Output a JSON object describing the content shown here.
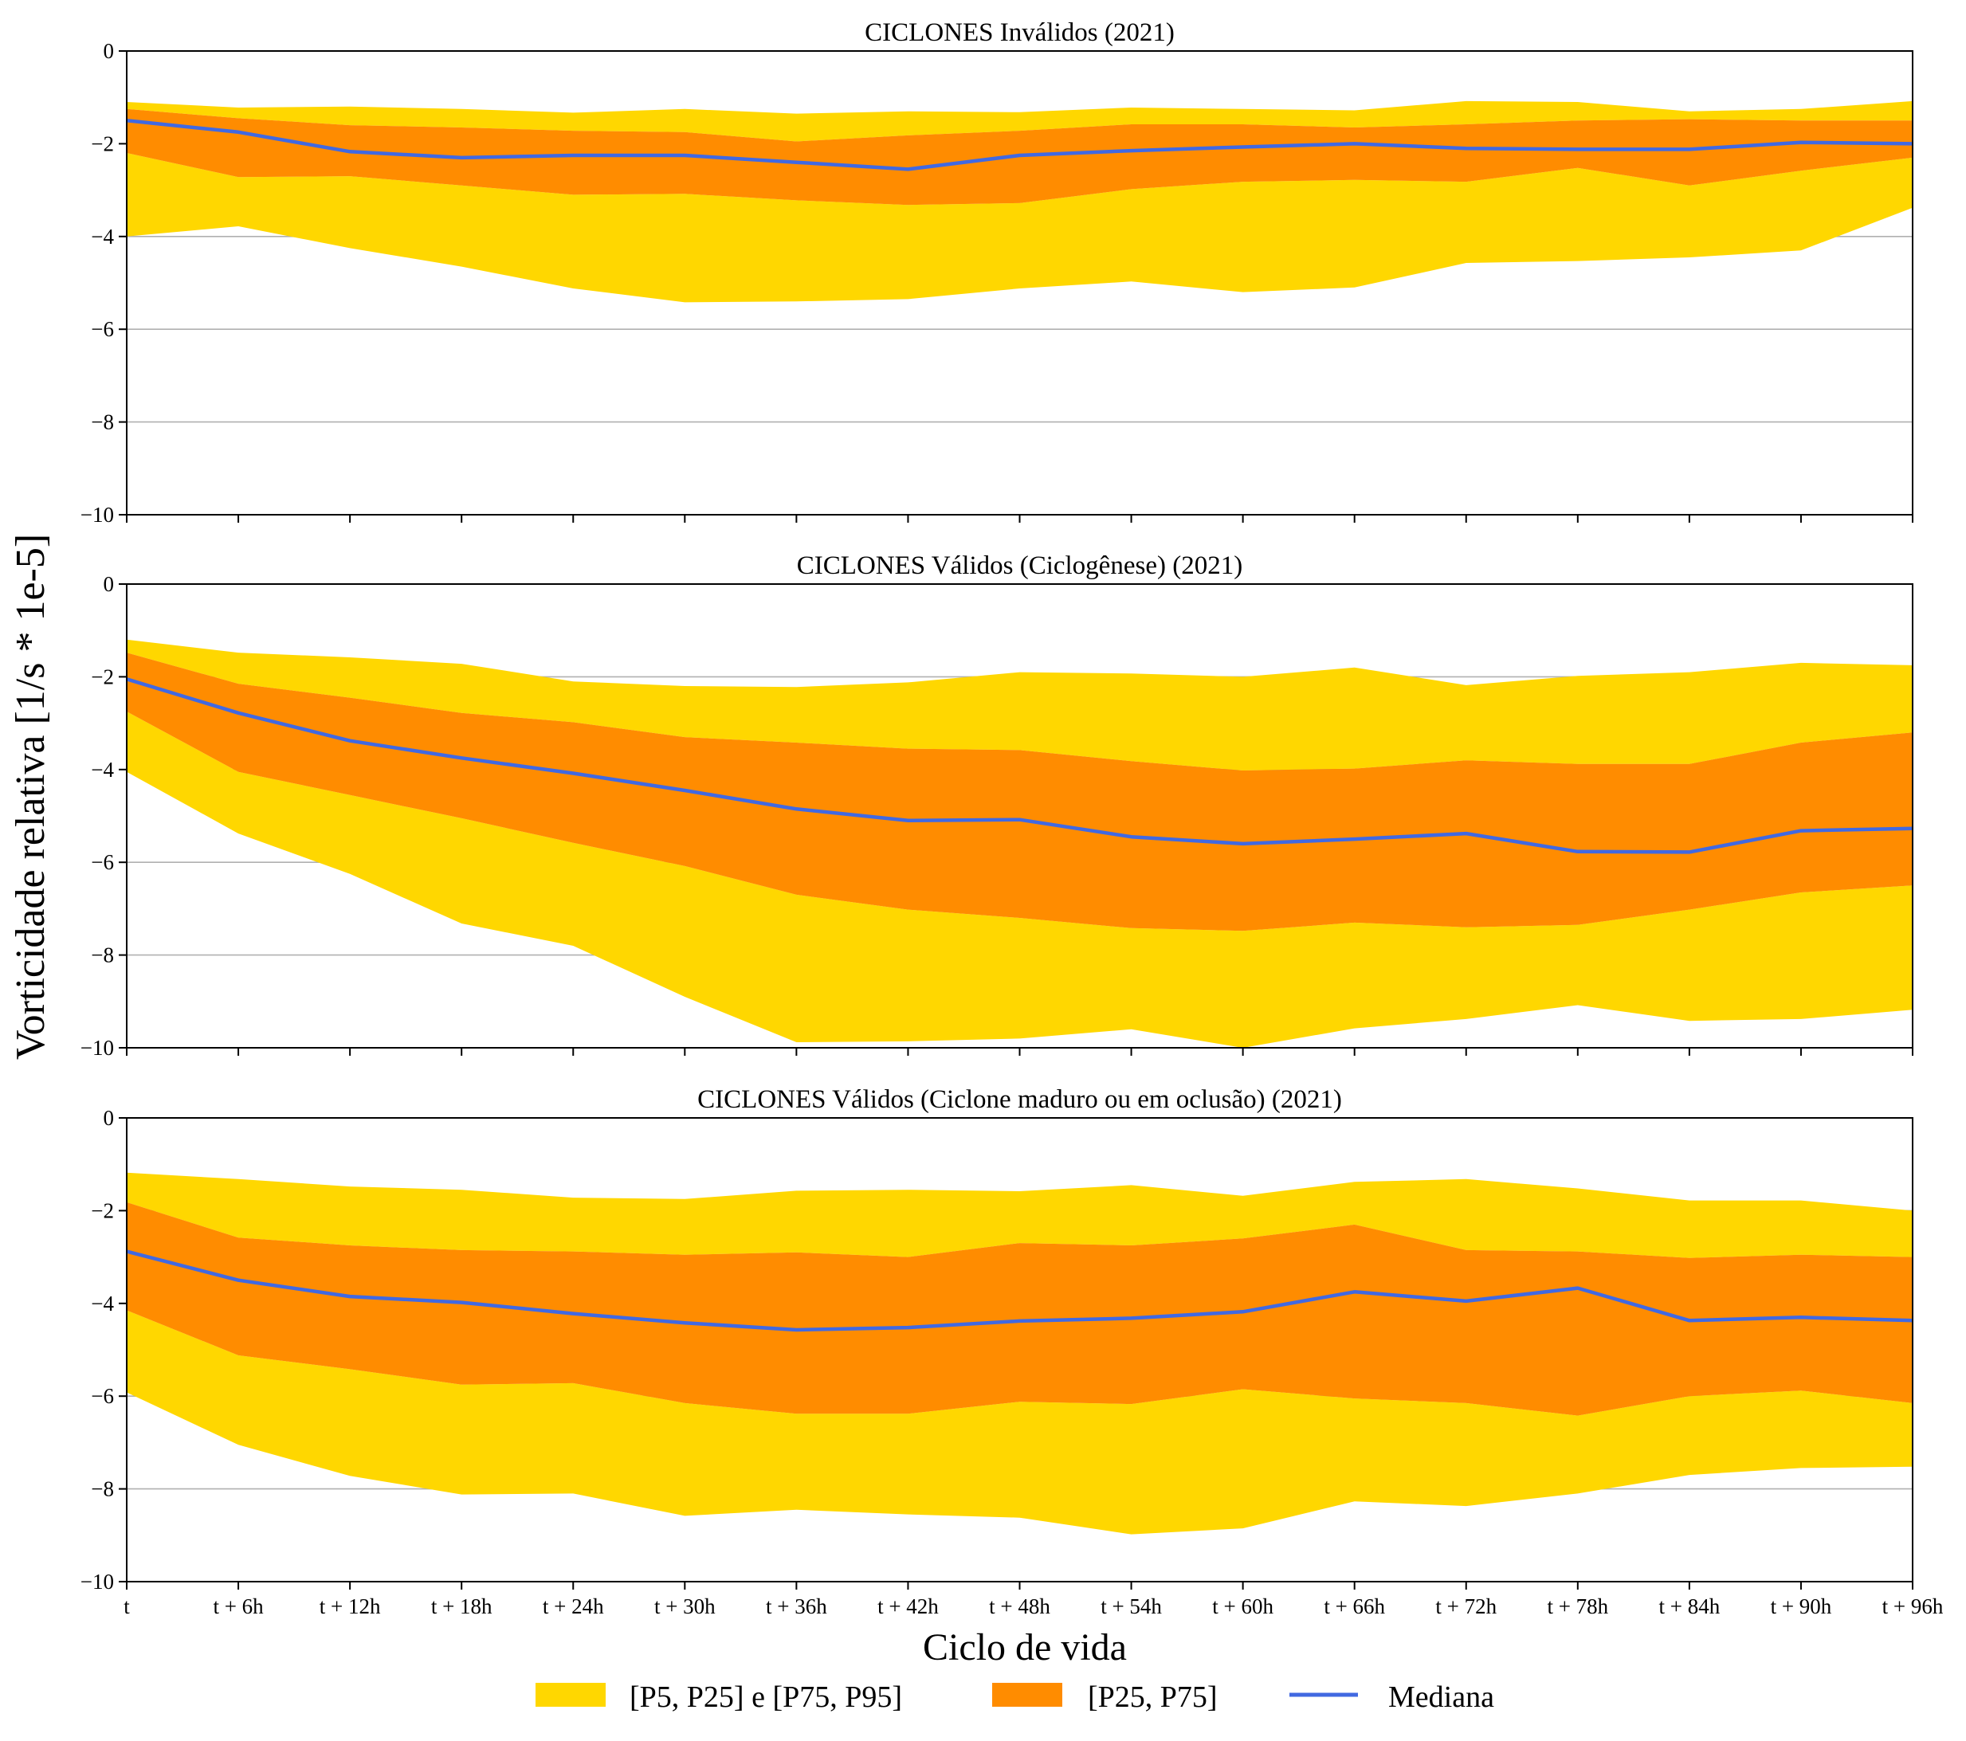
{
  "colors": {
    "outer_band": "#FFD700",
    "inner_band": "#FF8C00",
    "median": "#4169E1",
    "grid": "#b0b0b0"
  },
  "y_axis_label": "Vorticidade relativa [1/s * 1e-5]",
  "x_axis_label": "Ciclo de vida",
  "legend": {
    "outer": "[P5, P25] e [P75, P95]",
    "inner": "[P25, P75]",
    "median": "Mediana"
  },
  "chart_data": [
    {
      "type": "area",
      "title": "CICLONES Inválidos (2021)",
      "categories": [
        "t",
        "t + 6h",
        "t + 12h",
        "t + 18h",
        "t + 24h",
        "t + 30h",
        "t + 36h",
        "t + 42h",
        "t + 48h",
        "t + 54h",
        "t + 60h",
        "t + 66h",
        "t + 72h",
        "t + 78h",
        "t + 84h",
        "t + 90h",
        "t + 96h"
      ],
      "ylim": [
        -10,
        0
      ],
      "yticks": [
        0,
        -2,
        -4,
        -6,
        -8,
        -10
      ],
      "grid": "horizontal",
      "series": {
        "P95": [
          -1.1,
          -1.22,
          -1.2,
          -1.25,
          -1.33,
          -1.25,
          -1.35,
          -1.3,
          -1.32,
          -1.22,
          -1.25,
          -1.28,
          -1.08,
          -1.1,
          -1.3,
          -1.25,
          -1.08
        ],
        "P75": [
          -1.25,
          -1.45,
          -1.6,
          -1.65,
          -1.72,
          -1.75,
          -1.95,
          -1.82,
          -1.72,
          -1.58,
          -1.58,
          -1.65,
          -1.58,
          -1.5,
          -1.47,
          -1.5,
          -1.5
        ],
        "P50": [
          -1.5,
          -1.75,
          -2.17,
          -2.3,
          -2.25,
          -2.25,
          -2.4,
          -2.55,
          -2.25,
          -2.15,
          -2.07,
          -2.0,
          -2.1,
          -2.12,
          -2.12,
          -1.97,
          -2.0
        ],
        "P25": [
          -2.2,
          -2.72,
          -2.7,
          -2.9,
          -3.1,
          -3.08,
          -3.22,
          -3.32,
          -3.28,
          -2.98,
          -2.82,
          -2.78,
          -2.82,
          -2.52,
          -2.9,
          -2.58,
          -2.3
        ],
        "P5": [
          -4.0,
          -3.78,
          -4.25,
          -4.65,
          -5.12,
          -5.42,
          -5.4,
          -5.35,
          -5.12,
          -4.97,
          -5.2,
          -5.1,
          -4.57,
          -4.53,
          -4.45,
          -4.3,
          -3.38
        ]
      }
    },
    {
      "type": "area",
      "title": "CICLONES Válidos (Ciclogênese) (2021)",
      "categories": [
        "t",
        "t + 6h",
        "t + 12h",
        "t + 18h",
        "t + 24h",
        "t + 30h",
        "t + 36h",
        "t + 42h",
        "t + 48h",
        "t + 54h",
        "t + 60h",
        "t + 66h",
        "t + 72h",
        "t + 78h",
        "t + 84h",
        "t + 90h",
        "t + 96h"
      ],
      "ylim": [
        -10,
        0
      ],
      "yticks": [
        0,
        -2,
        -4,
        -6,
        -8,
        -10
      ],
      "grid": "horizontal",
      "series": {
        "P95": [
          -1.2,
          -1.48,
          -1.58,
          -1.72,
          -2.1,
          -2.2,
          -2.22,
          -2.12,
          -1.9,
          -1.93,
          -2.0,
          -1.8,
          -2.18,
          -1.98,
          -1.9,
          -1.7,
          -1.75
        ],
        "P75": [
          -1.48,
          -2.15,
          -2.45,
          -2.78,
          -2.98,
          -3.3,
          -3.42,
          -3.55,
          -3.58,
          -3.82,
          -4.02,
          -3.98,
          -3.8,
          -3.88,
          -3.88,
          -3.42,
          -3.2
        ],
        "P50": [
          -2.05,
          -2.78,
          -3.38,
          -3.75,
          -4.08,
          -4.45,
          -4.85,
          -5.1,
          -5.08,
          -5.45,
          -5.6,
          -5.5,
          -5.38,
          -5.77,
          -5.78,
          -5.32,
          -5.27
        ],
        "P25": [
          -2.75,
          -4.05,
          -4.55,
          -5.05,
          -5.58,
          -6.08,
          -6.7,
          -7.02,
          -7.2,
          -7.42,
          -7.48,
          -7.3,
          -7.4,
          -7.35,
          -7.02,
          -6.65,
          -6.5
        ],
        "P5": [
          -4.05,
          -5.38,
          -6.25,
          -7.32,
          -7.8,
          -8.9,
          -9.88,
          -9.86,
          -9.8,
          -9.6,
          -10.1,
          -9.58,
          -9.38,
          -9.08,
          -9.42,
          -9.38,
          -9.18
        ]
      }
    },
    {
      "type": "area",
      "title": "CICLONES Válidos (Ciclone maduro ou em oclusão) (2021)",
      "categories": [
        "t",
        "t + 6h",
        "t + 12h",
        "t + 18h",
        "t + 24h",
        "t + 30h",
        "t + 36h",
        "t + 42h",
        "t + 48h",
        "t + 54h",
        "t + 60h",
        "t + 66h",
        "t + 72h",
        "t + 78h",
        "t + 84h",
        "t + 90h",
        "t + 96h"
      ],
      "ylim": [
        -10,
        0
      ],
      "yticks": [
        0,
        -2,
        -4,
        -6,
        -8,
        -10
      ],
      "grid": "horizontal",
      "series": {
        "P95": [
          -1.18,
          -1.32,
          -1.48,
          -1.55,
          -1.72,
          -1.75,
          -1.57,
          -1.55,
          -1.58,
          -1.45,
          -1.68,
          -1.38,
          -1.32,
          -1.52,
          -1.78,
          -1.78,
          -2.0
        ],
        "P75": [
          -1.82,
          -2.58,
          -2.75,
          -2.85,
          -2.88,
          -2.95,
          -2.9,
          -3.0,
          -2.7,
          -2.75,
          -2.6,
          -2.3,
          -2.85,
          -2.88,
          -3.02,
          -2.95,
          -3.0
        ],
        "P50": [
          -2.88,
          -3.5,
          -3.85,
          -3.98,
          -4.22,
          -4.42,
          -4.57,
          -4.52,
          -4.38,
          -4.32,
          -4.18,
          -3.75,
          -3.95,
          -3.67,
          -4.37,
          -4.3,
          -4.37
        ],
        "P25": [
          -4.15,
          -5.12,
          -5.42,
          -5.75,
          -5.72,
          -6.15,
          -6.38,
          -6.38,
          -6.12,
          -6.17,
          -5.85,
          -6.05,
          -6.15,
          -6.42,
          -6.0,
          -5.88,
          -6.15
        ],
        "P5": [
          -5.92,
          -7.05,
          -7.72,
          -8.12,
          -8.1,
          -8.58,
          -8.45,
          -8.55,
          -8.62,
          -8.98,
          -8.85,
          -8.27,
          -8.37,
          -8.1,
          -7.7,
          -7.55,
          -7.52
        ]
      }
    }
  ]
}
